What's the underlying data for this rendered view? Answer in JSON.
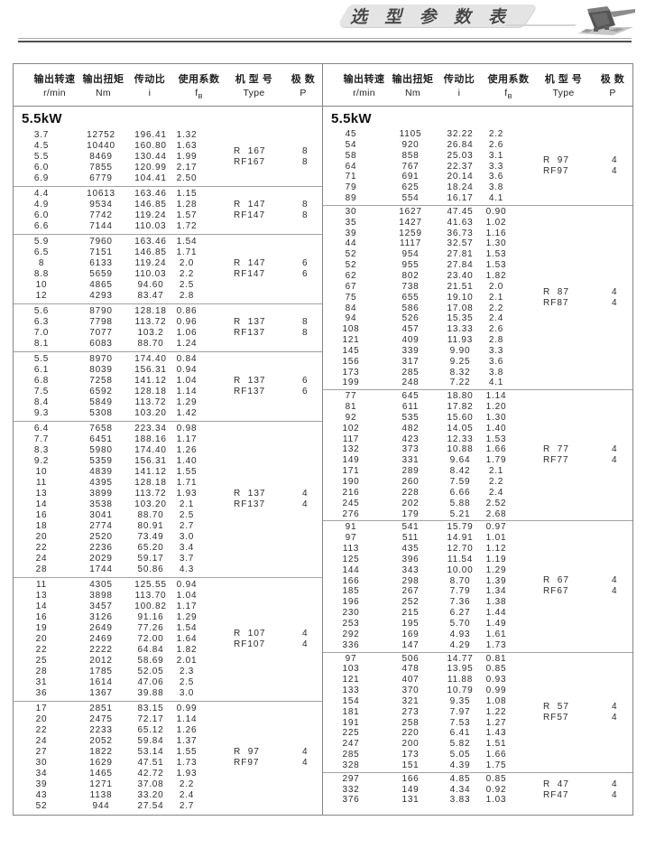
{
  "page": {
    "title": "选 型 参 数 表"
  },
  "table": {
    "header": {
      "columns": [
        {
          "cn": "输出转速",
          "unit": "r/min"
        },
        {
          "cn": "输出扭矩",
          "unit": "Nm"
        },
        {
          "cn": "传动比",
          "unit": "i"
        },
        {
          "cn": "使用系数",
          "unit_base": "f",
          "unit_sub": "B"
        },
        {
          "cn": "机 型 号",
          "unit": "Type"
        },
        {
          "cn": "极 数",
          "unit": "P"
        }
      ]
    },
    "left": {
      "power": "5.5kW",
      "blocks": [
        {
          "type1": "R  167",
          "type2": "RF167",
          "pole1": "8",
          "pole2": "8",
          "rows": [
            [
              "3.7",
              "12752",
              "196.41",
              "1.32"
            ],
            [
              "4.5",
              "10440",
              "160.80",
              "1.63"
            ],
            [
              "5.5",
              "8469",
              "130.44",
              "1.99"
            ],
            [
              "6.0",
              "7855",
              "120.99",
              "2.17"
            ],
            [
              "6.9",
              "6779",
              "104.41",
              "2.50"
            ]
          ]
        },
        {
          "type1": "R  147",
          "type2": "RF147",
          "pole1": "8",
          "pole2": "8",
          "rows": [
            [
              "4.4",
              "10613",
              "163.46",
              "1.15"
            ],
            [
              "4.9",
              "9534",
              "146.85",
              "1.28"
            ],
            [
              "6.0",
              "7742",
              "119.24",
              "1.57"
            ],
            [
              "6.6",
              "7144",
              "110.03",
              "1.72"
            ]
          ]
        },
        {
          "type1": "R  147",
          "type2": "RF147",
          "pole1": "6",
          "pole2": "6",
          "rows": [
            [
              "5.9",
              "7960",
              "163.46",
              "1.54"
            ],
            [
              "6.5",
              "7151",
              "146.85",
              "1.71"
            ],
            [
              "8",
              "6133",
              "119.24",
              "2.0"
            ],
            [
              "8.8",
              "5659",
              "110.03",
              "2.2"
            ],
            [
              "10",
              "4865",
              "94.60",
              "2.5"
            ],
            [
              "12",
              "4293",
              "83.47",
              "2.8"
            ]
          ]
        },
        {
          "type1": "R  137",
          "type2": "RF137",
          "pole1": "8",
          "pole2": "8",
          "rows": [
            [
              "5.6",
              "8790",
              "128.18",
              "0.86"
            ],
            [
              "6.3",
              "7798",
              "113.72",
              "0.96"
            ],
            [
              "7.0",
              "7077",
              "103.2",
              "1.06"
            ],
            [
              "8.1",
              "6083",
              "88.70",
              "1.24"
            ]
          ]
        },
        {
          "type1": "R  137",
          "type2": "RF137",
          "pole1": "6",
          "pole2": "6",
          "rows": [
            [
              "5.5",
              "8970",
              "174.40",
              "0.84"
            ],
            [
              "6.1",
              "8039",
              "156.31",
              "0.94"
            ],
            [
              "6.8",
              "7258",
              "141.12",
              "1.04"
            ],
            [
              "7.5",
              "6592",
              "128.18",
              "1.14"
            ],
            [
              "8.4",
              "5849",
              "113.72",
              "1.29"
            ],
            [
              "9.3",
              "5308",
              "103.20",
              "1.42"
            ]
          ]
        },
        {
          "type1": "R  137",
          "type2": "RF137",
          "pole1": "4",
          "pole2": "4",
          "rows": [
            [
              "6.4",
              "7658",
              "223.34",
              "0.98"
            ],
            [
              "7.7",
              "6451",
              "188.16",
              "1.17"
            ],
            [
              "8.3",
              "5980",
              "174.40",
              "1.26"
            ],
            [
              "9.2",
              "5359",
              "156.31",
              "1.40"
            ],
            [
              "10",
              "4839",
              "141.12",
              "1.55"
            ],
            [
              "11",
              "4395",
              "128.18",
              "1.71"
            ],
            [
              "13",
              "3899",
              "113.72",
              "1.93"
            ],
            [
              "14",
              "3538",
              "103.20",
              "2.1"
            ],
            [
              "16",
              "3041",
              "88.70",
              "2.5"
            ],
            [
              "18",
              "2774",
              "80.91",
              "2.7"
            ],
            [
              "20",
              "2520",
              "73.49",
              "3.0"
            ],
            [
              "22",
              "2236",
              "65.20",
              "3.4"
            ],
            [
              "24",
              "2029",
              "59.17",
              "3.7"
            ],
            [
              "28",
              "1744",
              "50.86",
              "4.3"
            ]
          ]
        },
        {
          "type1": "R  107",
          "type2": "RF107",
          "pole1": "4",
          "pole2": "4",
          "rows": [
            [
              "11",
              "4305",
              "125.55",
              "0.94"
            ],
            [
              "13",
              "3898",
              "113.70",
              "1.04"
            ],
            [
              "14",
              "3457",
              "100.82",
              "1.17"
            ],
            [
              "16",
              "3126",
              "91.16",
              "1.29"
            ],
            [
              "19",
              "2649",
              "77.26",
              "1.54"
            ],
            [
              "20",
              "2469",
              "72.00",
              "1.64"
            ],
            [
              "22",
              "2222",
              "64.84",
              "1.82"
            ],
            [
              "25",
              "2012",
              "58.69",
              "2.01"
            ],
            [
              "28",
              "1785",
              "52.05",
              "2.3"
            ],
            [
              "31",
              "1614",
              "47.06",
              "2.5"
            ],
            [
              "36",
              "1367",
              "39.88",
              "3.0"
            ]
          ]
        },
        {
          "type1": "R  97",
          "type2": "RF97",
          "pole1": "4",
          "pole2": "4",
          "rows": [
            [
              "17",
              "2851",
              "83.15",
              "0.99"
            ],
            [
              "20",
              "2475",
              "72.17",
              "1.14"
            ],
            [
              "22",
              "2233",
              "65.12",
              "1.26"
            ],
            [
              "24",
              "2052",
              "59.84",
              "1.37"
            ],
            [
              "27",
              "1822",
              "53.14",
              "1.55"
            ],
            [
              "30",
              "1629",
              "47.51",
              "1.73"
            ],
            [
              "34",
              "1465",
              "42.72",
              "1.93"
            ],
            [
              "39",
              "1271",
              "37.08",
              "2.2"
            ],
            [
              "43",
              "1138",
              "33.20",
              "2.4"
            ],
            [
              "52",
              "944",
              "27.54",
              "2.7"
            ]
          ]
        }
      ]
    },
    "right": {
      "power": "5.5kW",
      "blocks": [
        {
          "type1": "R  97",
          "type2": "RF97",
          "pole1": "4",
          "pole2": "4",
          "rows": [
            [
              "45",
              "1105",
              "32.22",
              "2.2"
            ],
            [
              "54",
              "920",
              "26.84",
              "2.6"
            ],
            [
              "58",
              "858",
              "25.03",
              "3.1"
            ],
            [
              "64",
              "767",
              "22.37",
              "3.3"
            ],
            [
              "71",
              "691",
              "20.14",
              "3.6"
            ],
            [
              "79",
              "625",
              "18.24",
              "3.8"
            ],
            [
              "89",
              "554",
              "16.17",
              "4.1"
            ]
          ]
        },
        {
          "type1": "R  87",
          "type2": "RF87",
          "pole1": "4",
          "pole2": "4",
          "rows": [
            [
              "30",
              "1627",
              "47.45",
              "0.90"
            ],
            [
              "35",
              "1427",
              "41.63",
              "1.02"
            ],
            [
              "39",
              "1259",
              "36.73",
              "1.16"
            ],
            [
              "44",
              "1117",
              "32.57",
              "1.30"
            ],
            [
              "52",
              "954",
              "27.81",
              "1.53"
            ],
            [
              "52",
              "955",
              "27.84",
              "1.53"
            ],
            [
              "62",
              "802",
              "23.40",
              "1.82"
            ],
            [
              "67",
              "738",
              "21.51",
              "2.0"
            ],
            [
              "75",
              "655",
              "19.10",
              "2.1"
            ],
            [
              "84",
              "586",
              "17.08",
              "2.2"
            ],
            [
              "94",
              "526",
              "15.35",
              "2.4"
            ],
            [
              "108",
              "457",
              "13.33",
              "2.6"
            ],
            [
              "121",
              "409",
              "11.93",
              "2.8"
            ],
            [
              "145",
              "339",
              "9.90",
              "3.3"
            ],
            [
              "156",
              "317",
              "9.25",
              "3.6"
            ],
            [
              "173",
              "285",
              "8.32",
              "3.8"
            ],
            [
              "199",
              "248",
              "7.22",
              "4.1"
            ]
          ]
        },
        {
          "type1": "R  77",
          "type2": "RF77",
          "pole1": "4",
          "pole2": "4",
          "rows": [
            [
              "77",
              "645",
              "18.80",
              "1.14"
            ],
            [
              "81",
              "611",
              "17.82",
              "1.20"
            ],
            [
              "92",
              "535",
              "15.60",
              "1.30"
            ],
            [
              "102",
              "482",
              "14.05",
              "1.40"
            ],
            [
              "117",
              "423",
              "12.33",
              "1.53"
            ],
            [
              "132",
              "373",
              "10.88",
              "1.66"
            ],
            [
              "149",
              "331",
              "9.64",
              "1.79"
            ],
            [
              "171",
              "289",
              "8.42",
              "2.1"
            ],
            [
              "190",
              "260",
              "7.59",
              "2.2"
            ],
            [
              "216",
              "228",
              "6.66",
              "2.4"
            ],
            [
              "245",
              "202",
              "5.88",
              "2.52"
            ],
            [
              "276",
              "179",
              "5.21",
              "2.68"
            ]
          ]
        },
        {
          "type1": "R  67",
          "type2": "RF67",
          "pole1": "4",
          "pole2": "4",
          "rows": [
            [
              "91",
              "541",
              "15.79",
              "0.97"
            ],
            [
              "97",
              "511",
              "14.91",
              "1.01"
            ],
            [
              "113",
              "435",
              "12.70",
              "1.12"
            ],
            [
              "125",
              "396",
              "11.54",
              "1.19"
            ],
            [
              "144",
              "343",
              "10.00",
              "1.29"
            ],
            [
              "166",
              "298",
              "8.70",
              "1.39"
            ],
            [
              "185",
              "267",
              "7.79",
              "1.34"
            ],
            [
              "196",
              "252",
              "7.36",
              "1.38"
            ],
            [
              "230",
              "215",
              "6.27",
              "1.44"
            ],
            [
              "253",
              "195",
              "5.70",
              "1.49"
            ],
            [
              "292",
              "169",
              "4.93",
              "1.61"
            ],
            [
              "336",
              "147",
              "4.29",
              "1.73"
            ]
          ]
        },
        {
          "type1": "R  57",
          "type2": "RF57",
          "pole1": "4",
          "pole2": "4",
          "rows": [
            [
              "97",
              "506",
              "14.77",
              "0.81"
            ],
            [
              "103",
              "478",
              "13.95",
              "0.85"
            ],
            [
              "121",
              "407",
              "11.88",
              "0.93"
            ],
            [
              "133",
              "370",
              "10.79",
              "0.99"
            ],
            [
              "154",
              "321",
              "9.35",
              "1.08"
            ],
            [
              "181",
              "273",
              "7.97",
              "1.22"
            ],
            [
              "191",
              "258",
              "7.53",
              "1.27"
            ],
            [
              "225",
              "220",
              "6.41",
              "1.43"
            ],
            [
              "247",
              "200",
              "5.82",
              "1.51"
            ],
            [
              "285",
              "173",
              "5.05",
              "1.66"
            ],
            [
              "328",
              "151",
              "4.39",
              "1.75"
            ]
          ]
        },
        {
          "type1": "R  47",
          "type2": "RF47",
          "pole1": "4",
          "pole2": "4",
          "rows": [
            [
              "297",
              "166",
              "4.85",
              "0.85"
            ],
            [
              "332",
              "149",
              "4.34",
              "0.92"
            ],
            [
              "376",
              "131",
              "3.83",
              "1.03"
            ]
          ]
        }
      ]
    }
  }
}
